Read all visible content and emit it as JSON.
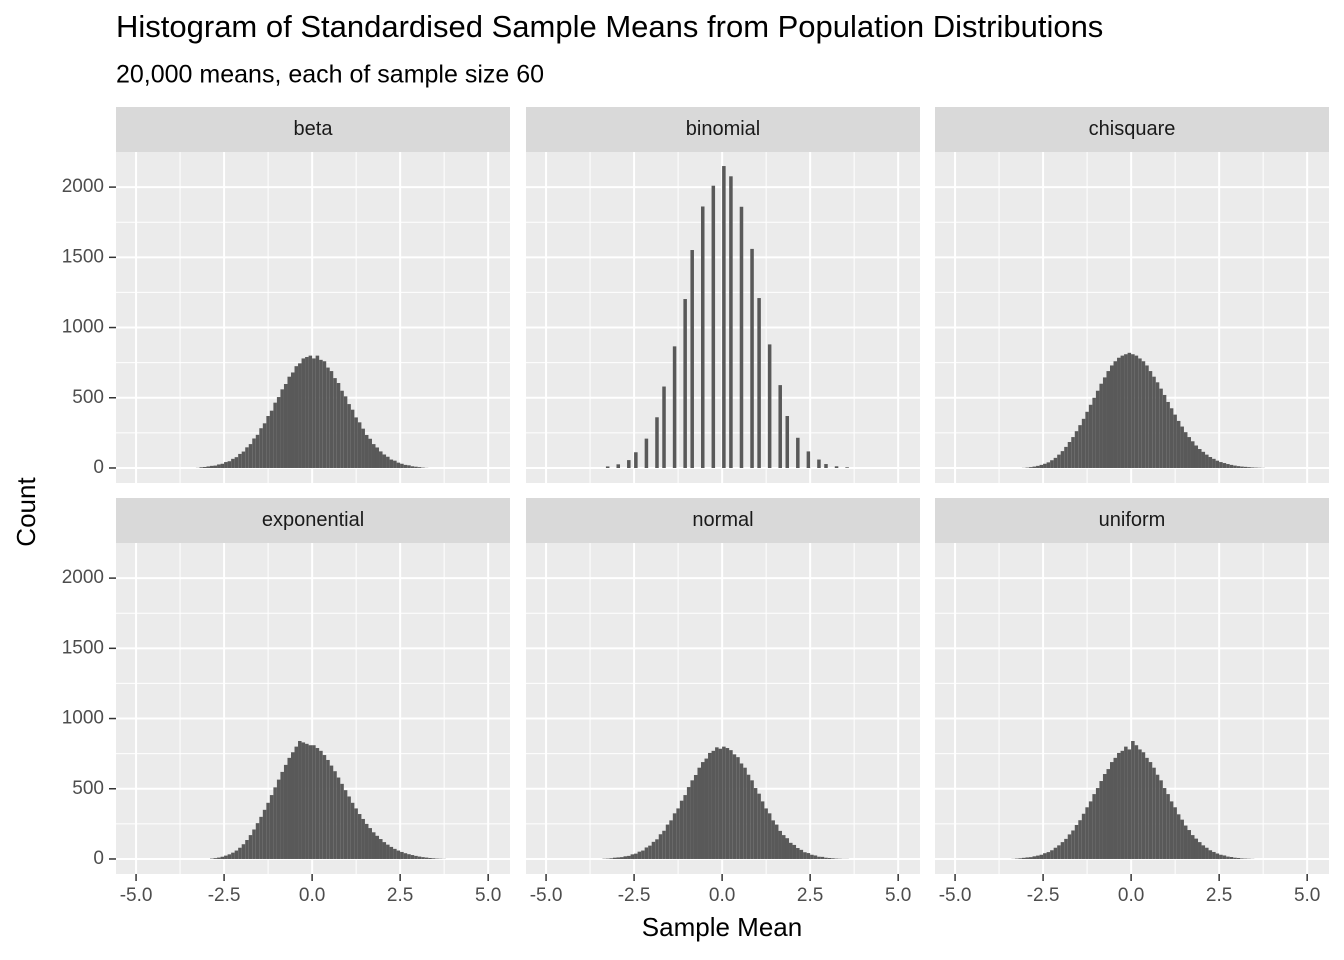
{
  "chart_data": {
    "type": "histogram",
    "title": "Histogram of Standardised Sample Means from Population Distributions",
    "subtitle": "20,000 means, each of sample size 60",
    "x_label": "Sample Mean",
    "y_label": "Count",
    "color": "#595959",
    "grid": true,
    "xlim": [
      -5.57,
      5.62
    ],
    "ylim": [
      -107,
      2250
    ],
    "xticks": [
      {
        "value": -5,
        "label": "-5.0"
      },
      -2.5,
      {
        "value": 0,
        "label": "0.0"
      },
      2.5,
      {
        "value": 5,
        "label": "5.0"
      }
    ],
    "yticks": [
      0,
      500,
      1000,
      1500,
      2000
    ],
    "bins": [
      -3.4,
      -3.3,
      -3.2,
      -3.1,
      -3.0,
      -2.9,
      -2.8,
      -2.7,
      -2.6,
      -2.5,
      -2.4,
      -2.3,
      -2.2,
      -2.1,
      -2.0,
      -1.9,
      -1.8,
      -1.7,
      -1.6,
      -1.5,
      -1.4,
      -1.3,
      -1.2,
      -1.1,
      -1.0,
      -0.9,
      -0.8,
      -0.7,
      -0.6,
      -0.5,
      -0.4,
      -0.3,
      -0.2,
      -0.1,
      0.0,
      0.1,
      0.2,
      0.3,
      0.4,
      0.5,
      0.6,
      0.7,
      0.8,
      0.9,
      1.0,
      1.1,
      1.2,
      1.3,
      1.4,
      1.5,
      1.6,
      1.7,
      1.8,
      1.9,
      2.0,
      2.1,
      2.2,
      2.3,
      2.4,
      2.5,
      2.6,
      2.7,
      2.8,
      2.9,
      3.0,
      3.1,
      3.2,
      3.3,
      3.4,
      3.5,
      3.6,
      3.7,
      3.8
    ],
    "facets": [
      {
        "name": "beta",
        "values": [
          0,
          1,
          5,
          7,
          11,
          15,
          17,
          25,
          30,
          42,
          48,
          65,
          77,
          100,
          117,
          147,
          170,
          210,
          236,
          283,
          318,
          370,
          408,
          465,
          505,
          560,
          598,
          650,
          680,
          725,
          745,
          780,
          790,
          800,
          780,
          800,
          770,
          760,
          715,
          690,
          640,
          605,
          550,
          510,
          455,
          415,
          360,
          325,
          280,
          235,
          208,
          170,
          146,
          118,
          96,
          80,
          60,
          52,
          38,
          30,
          22,
          19,
          12,
          9,
          6,
          3,
          1,
          0,
          0,
          0,
          0,
          0
        ]
      },
      {
        "name": "binomial",
        "values": [
          0,
          11,
          0,
          0,
          26,
          0,
          0,
          56,
          0,
          112,
          0,
          0,
          209,
          0,
          0,
          361,
          0,
          580,
          0,
          0,
          866,
          0,
          0,
          1203,
          0,
          1552,
          0,
          0,
          1862,
          0,
          0,
          2010,
          0,
          0,
          2150,
          0,
          2077,
          0,
          0,
          1860,
          0,
          0,
          1560,
          0,
          1210,
          0,
          0,
          880,
          0,
          0,
          590,
          0,
          370,
          0,
          0,
          215,
          0,
          0,
          118,
          0,
          0,
          60,
          0,
          28,
          0,
          0,
          12,
          0,
          0,
          5,
          0,
          0
        ]
      },
      {
        "name": "chisquare",
        "values": [
          0,
          0,
          0,
          1,
          3,
          6,
          10,
          15,
          22,
          30,
          40,
          55,
          72,
          95,
          120,
          150,
          185,
          220,
          262,
          305,
          350,
          400,
          450,
          500,
          550,
          600,
          645,
          690,
          730,
          760,
          785,
          800,
          810,
          820,
          810,
          800,
          780,
          760,
          730,
          690,
          650,
          610,
          565,
          520,
          470,
          425,
          380,
          335,
          295,
          255,
          220,
          190,
          160,
          135,
          115,
          95,
          78,
          65,
          52,
          42,
          35,
          28,
          22,
          17,
          13,
          10,
          8,
          6,
          4,
          3,
          2,
          1
        ]
      },
      {
        "name": "exponential",
        "values": [
          0,
          0,
          0,
          0,
          0,
          3,
          6,
          10,
          16,
          24,
          33,
          45,
          60,
          80,
          105,
          135,
          170,
          210,
          255,
          300,
          350,
          400,
          455,
          510,
          565,
          620,
          670,
          720,
          760,
          800,
          840,
          830,
          820,
          810,
          810,
          790,
          770,
          740,
          705,
          665,
          625,
          580,
          535,
          490,
          445,
          400,
          360,
          320,
          285,
          250,
          220,
          190,
          165,
          142,
          120,
          102,
          86,
          72,
          60,
          50,
          41,
          34,
          28,
          22,
          17,
          13,
          10,
          7,
          5,
          3,
          2,
          1
        ]
      },
      {
        "name": "normal",
        "values": [
          2,
          3,
          5,
          9,
          11,
          13,
          19,
          22,
          33,
          38,
          52,
          60,
          82,
          95,
          122,
          140,
          176,
          201,
          245,
          275,
          325,
          360,
          415,
          455,
          512,
          560,
          598,
          650,
          690,
          715,
          755,
          770,
          795,
          785,
          800,
          790,
          775,
          745,
          725,
          680,
          650,
          600,
          560,
          505,
          465,
          410,
          360,
          325,
          275,
          245,
          200,
          170,
          148,
          115,
          100,
          78,
          65,
          48,
          42,
          30,
          25,
          16,
          15,
          9,
          7,
          5,
          3,
          2,
          1,
          1,
          0,
          0
        ]
      },
      {
        "name": "uniform",
        "values": [
          1,
          3,
          5,
          8,
          11,
          13,
          19,
          24,
          30,
          41,
          49,
          62,
          80,
          97,
          120,
          143,
          175,
          203,
          242,
          276,
          322,
          368,
          410,
          462,
          505,
          555,
          605,
          640,
          690,
          720,
          755,
          770,
          800,
          780,
          840,
          810,
          780,
          760,
          720,
          690,
          650,
          600,
          560,
          505,
          462,
          410,
          368,
          318,
          280,
          238,
          206,
          170,
          145,
          120,
          97,
          80,
          62,
          50,
          39,
          30,
          25,
          17,
          14,
          9,
          7,
          4,
          3,
          2,
          1,
          0,
          0,
          0
        ]
      }
    ]
  }
}
